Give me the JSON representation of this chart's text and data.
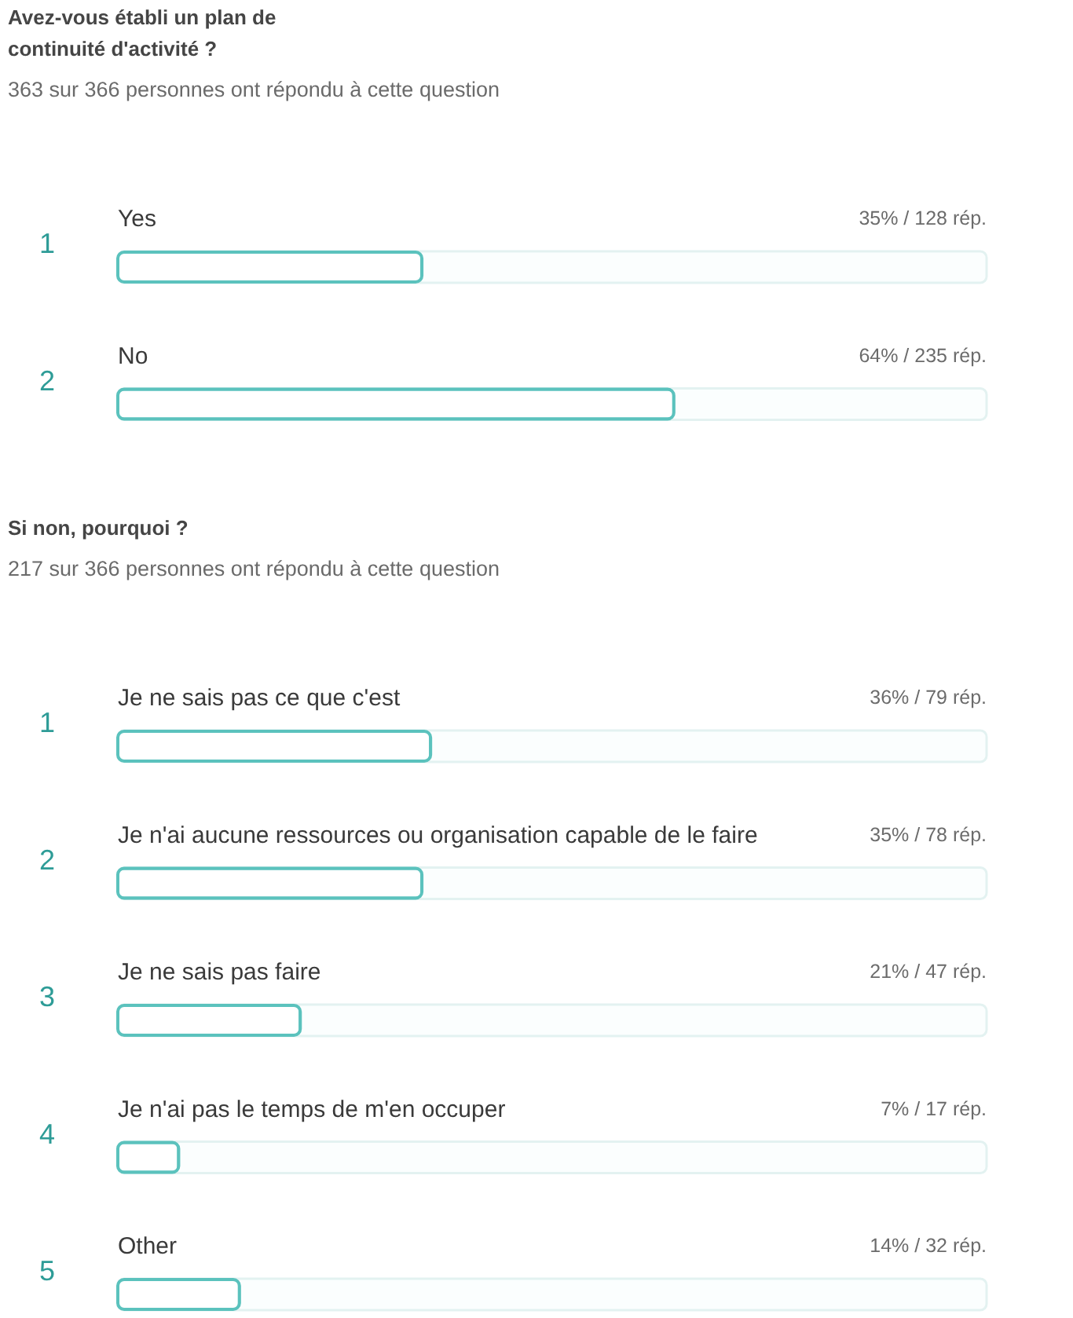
{
  "chart_data": [
    {
      "type": "bar",
      "orientation": "horizontal",
      "title": "Avez-vous établi un plan de continuité d'activité ?",
      "subtitle": "363 sur 366 personnes ont répondu à cette question",
      "categories": [
        "Yes",
        "No"
      ],
      "values": [
        35,
        64
      ],
      "value_labels": [
        "35% / 128 rép.",
        "64% / 235 rép."
      ],
      "color": "#5bc2bd",
      "xlim": [
        0,
        100
      ],
      "tick_labels": "y",
      "annotations": [
        "1",
        "2"
      ]
    },
    {
      "type": "bar",
      "orientation": "horizontal",
      "title": "Si non, pourquoi ?",
      "subtitle": "217 sur 366 personnes ont répondu à cette question",
      "categories": [
        "Je ne sais pas ce que c'est",
        "Je n'ai aucune ressources ou organisation capable de le faire",
        "Je ne sais pas faire",
        "Je n'ai pas le temps de m'en occuper",
        "Other"
      ],
      "values": [
        36,
        35,
        21,
        7,
        14
      ],
      "value_labels": [
        "36% / 79 rép.",
        "35% / 78 rép.",
        "21% / 47 rép.",
        "7% / 17 rép.",
        "14% / 32 rép."
      ],
      "color": "#5bc2bd",
      "xlim": [
        0,
        100
      ],
      "tick_labels": "y",
      "annotations": [
        "1",
        "2",
        "3",
        "4",
        "5"
      ]
    }
  ]
}
